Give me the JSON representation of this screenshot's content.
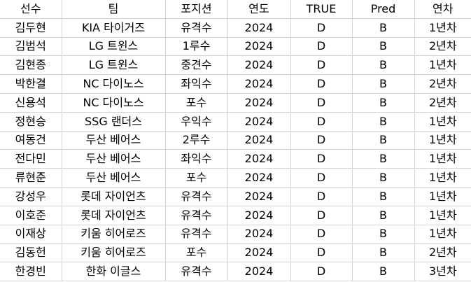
{
  "table": {
    "headers": [
      "선수",
      "팀",
      "포지션",
      "연도",
      "TRUE",
      "Pred",
      "연차"
    ],
    "rows": [
      [
        "김두현",
        "KIA 타이거즈",
        "유격수",
        "2024",
        "D",
        "B",
        "1년차"
      ],
      [
        "김범석",
        "LG 트윈스",
        "1루수",
        "2024",
        "D",
        "B",
        "2년차"
      ],
      [
        "김현종",
        "LG 트윈스",
        "중견수",
        "2024",
        "D",
        "B",
        "1년차"
      ],
      [
        "박한결",
        "NC 다이노스",
        "좌익수",
        "2024",
        "D",
        "B",
        "2년차"
      ],
      [
        "신용석",
        "NC 다이노스",
        "포수",
        "2024",
        "D",
        "B",
        "2년차"
      ],
      [
        "정현승",
        "SSG 랜더스",
        "우익수",
        "2024",
        "D",
        "B",
        "1년차"
      ],
      [
        "여동건",
        "두산 베어스",
        "2루수",
        "2024",
        "D",
        "B",
        "1년차"
      ],
      [
        "전다민",
        "두산 베어스",
        "좌익수",
        "2024",
        "D",
        "B",
        "1년차"
      ],
      [
        "류현준",
        "두산 베어스",
        "포수",
        "2024",
        "D",
        "B",
        "1년차"
      ],
      [
        "강성우",
        "롯데 자이언츠",
        "유격수",
        "2024",
        "D",
        "B",
        "1년차"
      ],
      [
        "이호준",
        "롯데 자이언츠",
        "유격수",
        "2024",
        "D",
        "B",
        "1년차"
      ],
      [
        "이재상",
        "키움 히어로즈",
        "유격수",
        "2024",
        "D",
        "B",
        "1년차"
      ],
      [
        "김동헌",
        "키움 히어로즈",
        "포수",
        "2024",
        "D",
        "B",
        "2년차"
      ],
      [
        "한경빈",
        "한화 이글스",
        "유격수",
        "2024",
        "D",
        "B",
        "3년차"
      ]
    ]
  }
}
